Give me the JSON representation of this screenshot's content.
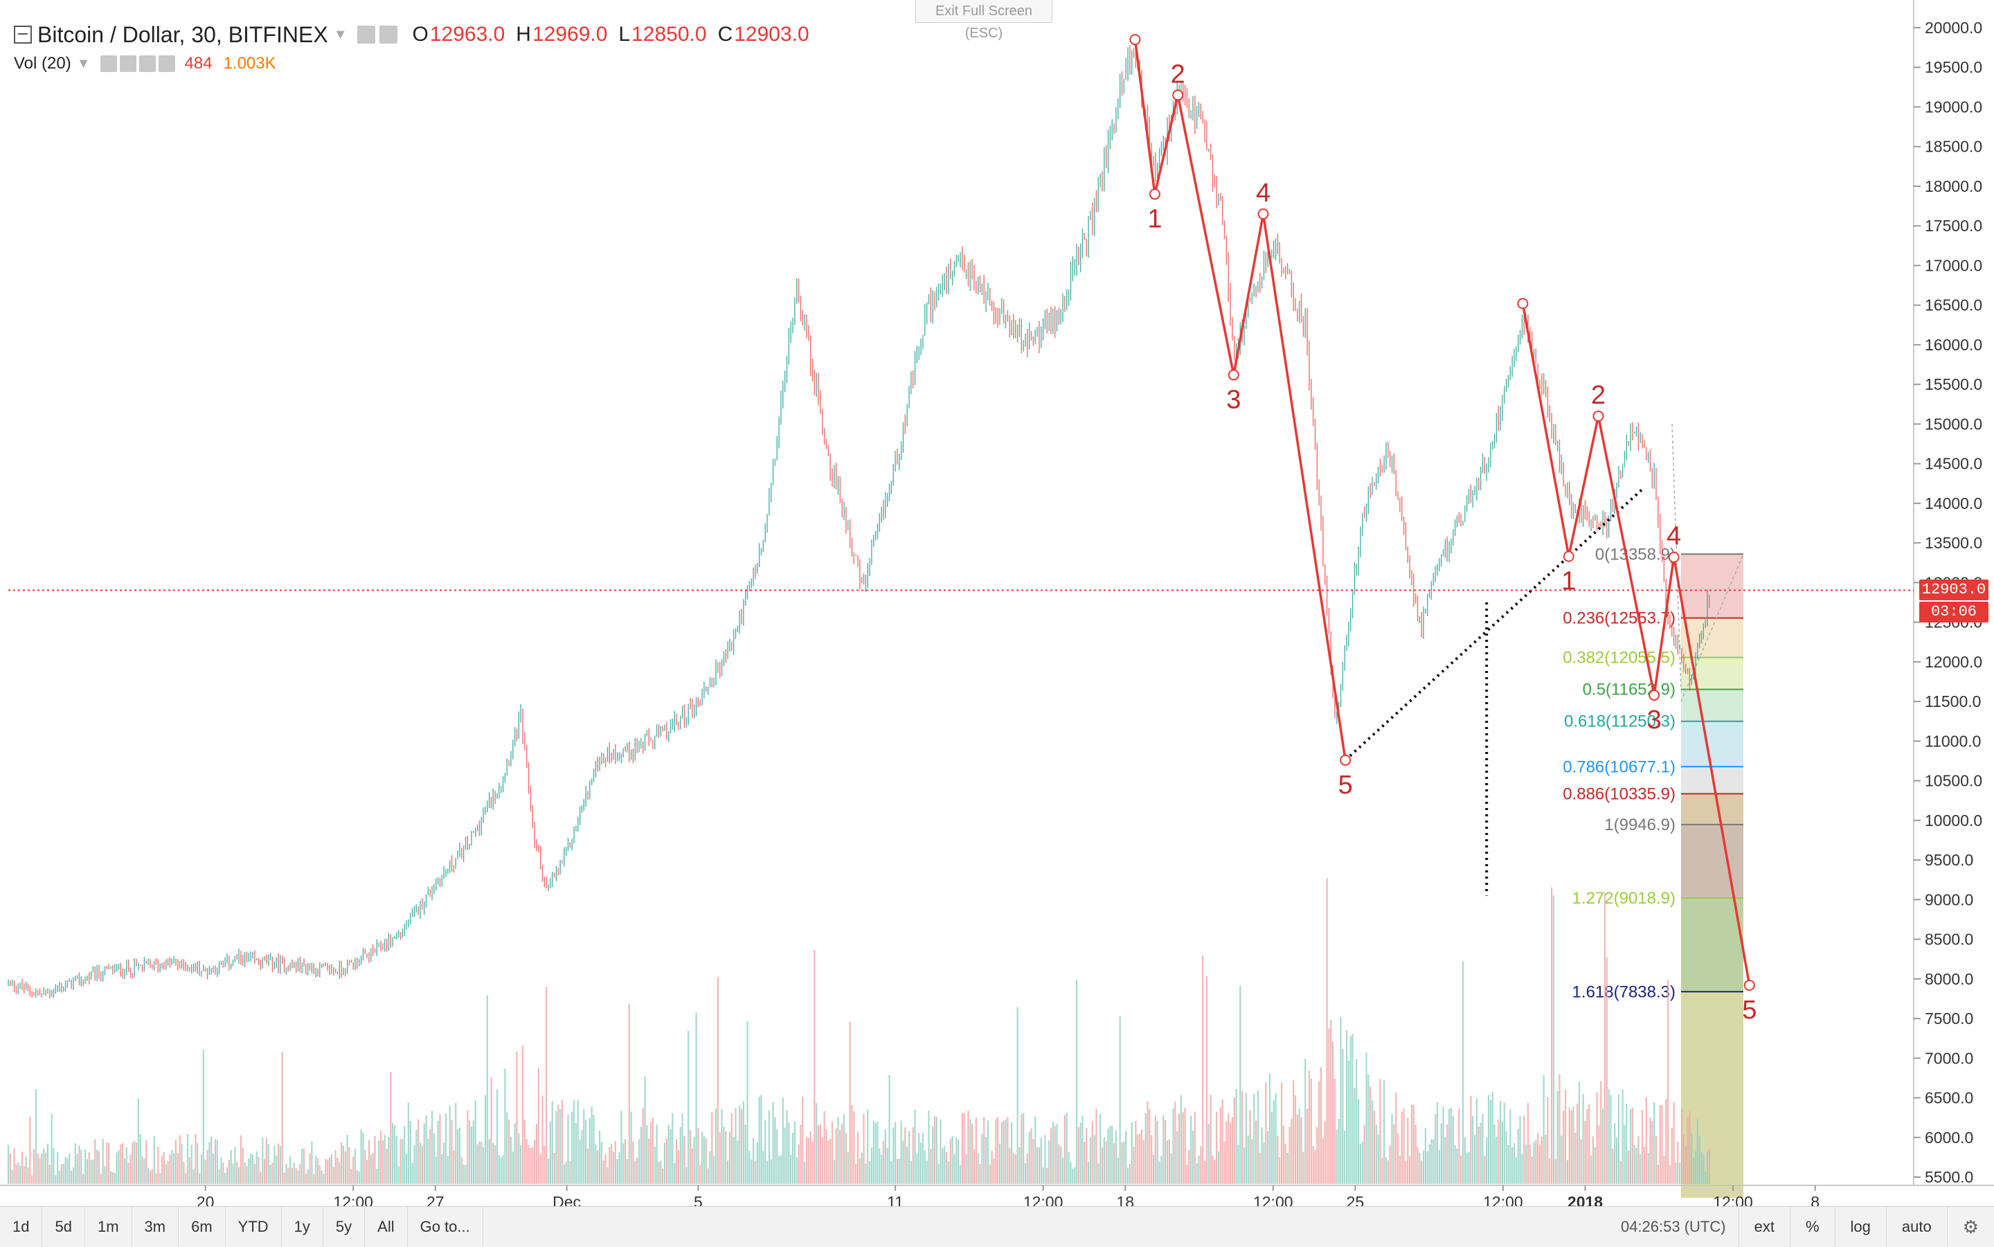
{
  "header": {
    "symbol": "Bitcoin / Dollar, 30, BITFINEX",
    "open_label": "O",
    "open": "12963.0",
    "high_label": "H",
    "high": "12969.0",
    "low_label": "L",
    "low": "12850.0",
    "close_label": "C",
    "close": "12903.0",
    "vol_label": "Vol (20)",
    "vol_value": "484",
    "vol_ma": "1.003K"
  },
  "exit_fullscreen": "Exit Full Screen (ESC)",
  "price_tags": {
    "last_price": "12903.0",
    "countdown": "03:06"
  },
  "toolbar": {
    "ranges": [
      "1d",
      "5d",
      "1m",
      "3m",
      "6m",
      "YTD",
      "1y",
      "5y",
      "All"
    ],
    "goto": "Go to...",
    "clock": "04:26:53 (UTC)",
    "right": [
      "ext",
      "%",
      "log",
      "auto"
    ],
    "settings_icon": "gear-icon"
  },
  "colors": {
    "up": "#26a69a",
    "down": "#ef5350",
    "wave": "#e53935",
    "wave_label": "#c62828",
    "last_price": "#e53935",
    "axis_text": "#333333"
  },
  "chart_data": {
    "type": "candlestick",
    "symbol": "Bitcoin / Dollar",
    "interval": "30",
    "exchange": "BITFINEX",
    "ylim": [
      5500,
      20000
    ],
    "y_ticks": [
      "5500.0",
      "6000.0",
      "6500.0",
      "7000.0",
      "7500.0",
      "8000.0",
      "8500.0",
      "9000.0",
      "9500.0",
      "10000.0",
      "10500.0",
      "11000.0",
      "11500.0",
      "12000.0",
      "12500.0",
      "13000.0",
      "13500.0",
      "14000.0",
      "14500.0",
      "15000.0",
      "15500.0",
      "16000.0",
      "16500.0",
      "17000.0",
      "17500.0",
      "18000.0",
      "18500.0",
      "19000.0",
      "19500.0",
      "20000.0"
    ],
    "x_ticks": [
      {
        "label": "20",
        "day": 6
      },
      {
        "label": "12:00",
        "day": 10.5
      },
      {
        "label": "27",
        "day": 13
      },
      {
        "label": "Dec",
        "day": 17
      },
      {
        "label": "5",
        "day": 21
      },
      {
        "label": "11",
        "day": 27
      },
      {
        "label": "12:00",
        "day": 31.5
      },
      {
        "label": "18",
        "day": 34
      },
      {
        "label": "12:00",
        "day": 38.5
      },
      {
        "label": "25",
        "day": 41
      },
      {
        "label": "12:00",
        "day": 45.5
      },
      {
        "label": "2018",
        "day": 48
      },
      {
        "label": "12:00",
        "day": 52.5
      },
      {
        "label": "8",
        "day": 55
      }
    ],
    "price_path": [
      [
        0,
        7950
      ],
      [
        1,
        7800
      ],
      [
        2,
        7950
      ],
      [
        3,
        8100
      ],
      [
        4,
        8150
      ],
      [
        5,
        8200
      ],
      [
        6,
        8100
      ],
      [
        7,
        8250
      ],
      [
        8,
        8200
      ],
      [
        9,
        8150
      ],
      [
        10,
        8100
      ],
      [
        11,
        8300
      ],
      [
        12,
        8600
      ],
      [
        13,
        9200
      ],
      [
        14,
        9700
      ],
      [
        15,
        10500
      ],
      [
        15.6,
        11300
      ],
      [
        16,
        9800
      ],
      [
        16.4,
        9100
      ],
      [
        17,
        9600
      ],
      [
        18,
        10800
      ],
      [
        19,
        10900
      ],
      [
        20,
        11100
      ],
      [
        21,
        11500
      ],
      [
        22,
        12200
      ],
      [
        23,
        13500
      ],
      [
        24,
        16800
      ],
      [
        25,
        14500
      ],
      [
        25.5,
        13800
      ],
      [
        26,
        12900
      ],
      [
        27,
        14500
      ],
      [
        28,
        16500
      ],
      [
        29,
        17000
      ],
      [
        30,
        16500
      ],
      [
        31,
        16000
      ],
      [
        32,
        16400
      ],
      [
        33,
        17600
      ],
      [
        34,
        19500
      ],
      [
        34.3,
        19700
      ],
      [
        34.9,
        18100
      ],
      [
        35.6,
        19100
      ],
      [
        36.3,
        18800
      ],
      [
        37,
        17500
      ],
      [
        37.3,
        15900
      ],
      [
        38.5,
        17300
      ],
      [
        39.5,
        16200
      ],
      [
        40.4,
        11200
      ],
      [
        41.2,
        13800
      ],
      [
        42,
        14700
      ],
      [
        43,
        12400
      ],
      [
        43.6,
        13300
      ],
      [
        44.3,
        13900
      ],
      [
        45,
        14500
      ],
      [
        46.1,
        16400
      ],
      [
        46.8,
        15300
      ],
      [
        47.5,
        14000
      ],
      [
        48.7,
        13700
      ],
      [
        49.4,
        15000
      ],
      [
        50.1,
        14300
      ],
      [
        50.5,
        12500
      ],
      [
        51.2,
        11800
      ],
      [
        51.8,
        12900
      ]
    ],
    "volume_path": [
      [
        0,
        60
      ],
      [
        5,
        80
      ],
      [
        10,
        70
      ],
      [
        14,
        140
      ],
      [
        15.6,
        220
      ],
      [
        17,
        130
      ],
      [
        21,
        110
      ],
      [
        24,
        150
      ],
      [
        26,
        120
      ],
      [
        30,
        110
      ],
      [
        34,
        120
      ],
      [
        37,
        150
      ],
      [
        40,
        200
      ],
      [
        40.3,
        280
      ],
      [
        42,
        150
      ],
      [
        44,
        130
      ],
      [
        47,
        170
      ],
      [
        50,
        150
      ],
      [
        51.8,
        90
      ]
    ],
    "volume_ylim": [
      0,
      600
    ],
    "last_price": 12903.0,
    "elliott_waves": [
      {
        "name": "primary",
        "points": [
          {
            "day": 34.3,
            "price": 19850,
            "label": ""
          },
          {
            "day": 34.9,
            "price": 17900,
            "label": "1"
          },
          {
            "day": 35.6,
            "price": 19150,
            "label": "2"
          },
          {
            "day": 37.3,
            "price": 15620,
            "label": "3"
          },
          {
            "day": 38.2,
            "price": 17650,
            "label": "4"
          },
          {
            "day": 40.7,
            "price": 10760,
            "label": "5"
          }
        ]
      },
      {
        "name": "secondary",
        "points": [
          {
            "day": 46.1,
            "price": 16520,
            "label": ""
          },
          {
            "day": 47.5,
            "price": 13330,
            "label": "1"
          },
          {
            "day": 48.4,
            "price": 15100,
            "label": "2"
          },
          {
            "day": 50.1,
            "price": 11580,
            "label": "3"
          },
          {
            "day": 50.7,
            "price": 13320,
            "label": "4"
          },
          {
            "day": 53.0,
            "price": 7920,
            "label": "5"
          }
        ]
      }
    ],
    "trendline": [
      {
        "day": 40.7,
        "price": 10760
      },
      {
        "day": 49.8,
        "price": 14200
      }
    ],
    "vertical_dotted": {
      "day": 45.0,
      "from": 12750,
      "to": 9050
    },
    "fibonacci": [
      {
        "label": "0(13358.9)",
        "value": 13358.9,
        "color": "#787878",
        "fill": "#f2c7c7"
      },
      {
        "label": "0.236(12553.7)",
        "value": 12553.7,
        "color": "#c62828",
        "fill": "#f4e3c3"
      },
      {
        "label": "0.382(12055.5)",
        "value": 12055.5,
        "color": "#9ccc3c",
        "fill": "#e3f0c4"
      },
      {
        "label": "0.5(11652.9)",
        "value": 11652.9,
        "color": "#43a047",
        "fill": "#cdebd4"
      },
      {
        "label": "0.618(11250.3)",
        "value": 11250.3,
        "color": "#26a69a",
        "fill": "#cce7ef"
      },
      {
        "label": "0.786(10677.1)",
        "value": 10677.1,
        "color": "#2196f3",
        "fill": "#e3e3e3"
      },
      {
        "label": "0.886(10335.9)",
        "value": 10335.9,
        "color": "#c62828",
        "fill": "#d8c4a0"
      },
      {
        "label": "1(9946.9)",
        "value": 9946.9,
        "color": "#787878",
        "fill": "#c9b7a9"
      },
      {
        "label": "1.272(9018.9)",
        "value": 9018.9,
        "color": "#9ccc3c",
        "fill": "#b5cc99"
      },
      {
        "label": "1.618(7838.3)",
        "value": 7838.3,
        "color": "#1a237e",
        "fill": "#d5d49d"
      }
    ]
  }
}
